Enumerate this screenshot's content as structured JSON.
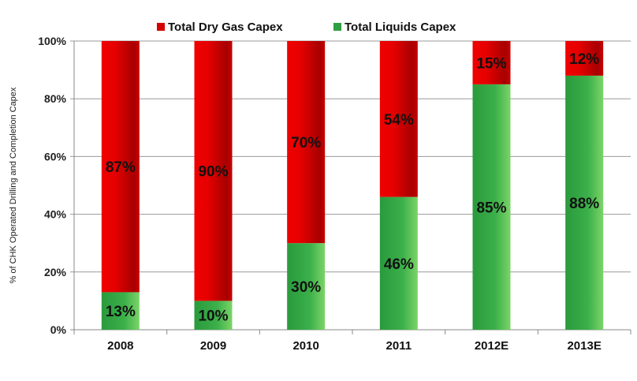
{
  "chart_data": {
    "type": "bar",
    "stacked": true,
    "title": "",
    "xlabel": "",
    "ylabel": "% of CHK Operated Drilling and Completion Capex",
    "ylim": [
      0,
      100
    ],
    "yticks": [
      "0%",
      "20%",
      "40%",
      "60%",
      "80%",
      "100%"
    ],
    "categories": [
      "2008",
      "2009",
      "2010",
      "2011",
      "2012E",
      "2013E"
    ],
    "legend_position": "top",
    "series": [
      {
        "name": "Total Liquids Capex",
        "color": "#2ea043",
        "values": [
          13,
          10,
          30,
          46,
          85,
          88
        ],
        "labels": [
          "13%",
          "10%",
          "30%",
          "46%",
          "85%",
          "88%"
        ]
      },
      {
        "name": "Total Dry Gas Capex",
        "color": "#d40000",
        "values": [
          87,
          90,
          70,
          54,
          15,
          12
        ],
        "labels": [
          "87%",
          "90%",
          "70%",
          "54%",
          "15%",
          "12%"
        ]
      }
    ],
    "legend": [
      "Total Dry Gas Capex",
      "Total Liquids Capex"
    ]
  }
}
